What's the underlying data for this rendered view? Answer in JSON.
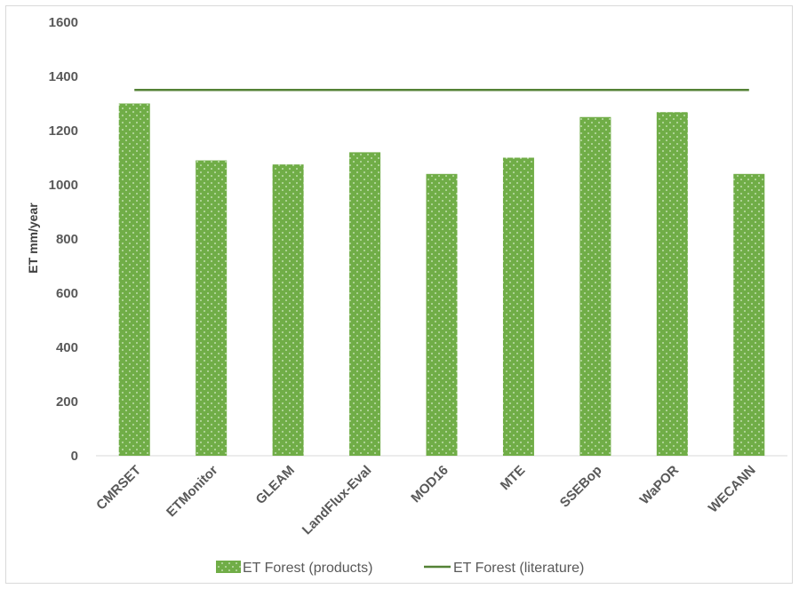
{
  "chart_data": {
    "type": "bar",
    "title": "",
    "xlabel": "",
    "ylabel": "ET mm/year",
    "ylim": [
      0,
      1600
    ],
    "yticks": [
      0,
      200,
      400,
      600,
      800,
      1000,
      1200,
      1400,
      1600
    ],
    "grid": false,
    "legend_position": "bottom",
    "categories": [
      "CMRSET",
      "ETMonitor",
      "GLEAM",
      "LandFlux-Eval",
      "MOD16",
      "MTE",
      "SSEBop",
      "WaPOR",
      "WECANN"
    ],
    "series": [
      {
        "name": "ET Forest (products)",
        "type": "bar",
        "values": [
          1300,
          1090,
          1075,
          1120,
          1040,
          1100,
          1250,
          1268,
          1040
        ],
        "color": "#70ad47"
      },
      {
        "name": "ET Forest (literature)",
        "type": "line",
        "values": [
          1350,
          1350,
          1350,
          1350,
          1350,
          1350,
          1350,
          1350,
          1350
        ],
        "color": "#548235"
      }
    ]
  }
}
